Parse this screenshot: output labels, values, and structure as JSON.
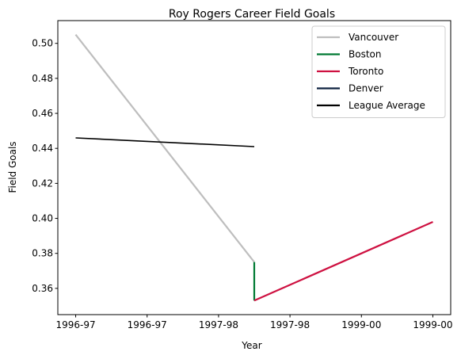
{
  "chart_data": {
    "type": "line",
    "title": "Roy Rogers  Career Field Goals",
    "xlabel": "Year",
    "ylabel": "Field Goals",
    "x_tick_labels": [
      "1996-97",
      "1996-97",
      "1997-98",
      "1997-98",
      "1999-00",
      "1999-00"
    ],
    "y_ticks": [
      "0.36",
      "0.38",
      "0.40",
      "0.42",
      "0.44",
      "0.46",
      "0.48",
      "0.50"
    ],
    "xlim": [
      -0.05,
      1.05
    ],
    "ylim": [
      0.345,
      0.513
    ],
    "legend_position": "top-right",
    "series": [
      {
        "name": "Vancouver",
        "color": "#bebebe",
        "points": [
          [
            0.0,
            0.505
          ],
          [
            0.5,
            0.375
          ]
        ]
      },
      {
        "name": "Boston",
        "color": "#007a33",
        "points": [
          [
            0.5,
            0.375
          ],
          [
            0.5,
            0.353
          ]
        ]
      },
      {
        "name": "Toronto",
        "color": "#ce1141",
        "points": [
          [
            0.5,
            0.353
          ],
          [
            1.0,
            0.398
          ]
        ]
      },
      {
        "name": "Denver",
        "color": "#0e2240",
        "points": []
      },
      {
        "name": "League Average",
        "color": "#000000",
        "points": [
          [
            0.0,
            0.446
          ],
          [
            0.5,
            0.441
          ]
        ]
      }
    ]
  }
}
